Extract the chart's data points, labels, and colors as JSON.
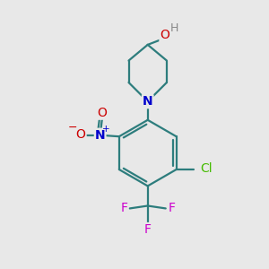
{
  "background_color": "#e8e8e8",
  "bond_color": "#2d7d7d",
  "atom_colors": {
    "O": "#cc0000",
    "N_nitro": "#0000cc",
    "N_pip": "#0000cc",
    "Cl": "#44bb00",
    "F": "#cc00cc",
    "H": "#888888",
    "C": "#2d7d7d"
  },
  "figsize": [
    3.0,
    3.0
  ],
  "dpi": 100,
  "xlim": [
    0,
    10
  ],
  "ylim": [
    0,
    10
  ]
}
